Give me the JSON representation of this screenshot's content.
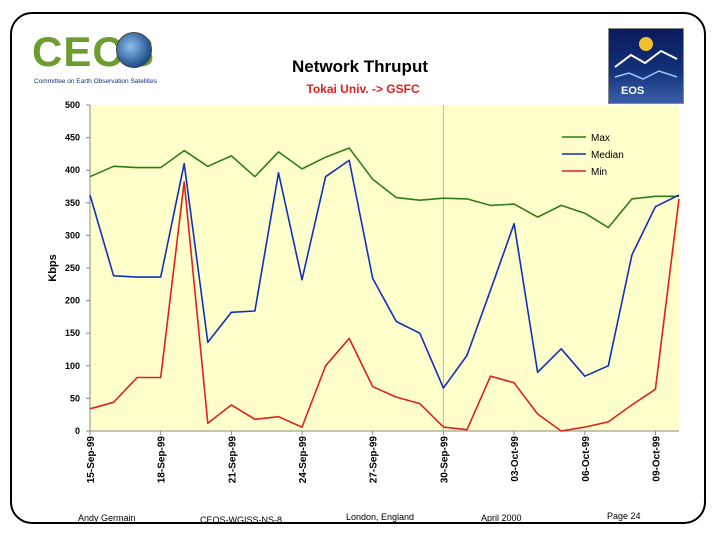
{
  "logos": {
    "left_wordmark": "CEOS",
    "left_tagline": "Committee on Earth Observation Satellites",
    "right_label": "EOS"
  },
  "chart_data": {
    "type": "line",
    "title": "Network Thruput",
    "subtitle": "Tokai Univ. -> GSFC",
    "ylabel": "Kbps",
    "xlabel": "",
    "ylim": [
      0,
      500
    ],
    "yticks": [
      0,
      50,
      100,
      150,
      200,
      250,
      300,
      350,
      400,
      450,
      500
    ],
    "grid": false,
    "legend_position": "top-right",
    "plot_background": "#ffffcc",
    "x_tick_labels": [
      "15-Sep-99",
      "18-Sep-99",
      "21-Sep-99",
      "24-Sep-99",
      "27-Sep-99",
      "30-Sep-99",
      "03-Oct-99",
      "06-Oct-99",
      "09-Oct-99"
    ],
    "x_tick_index": [
      0,
      3,
      6,
      9,
      12,
      15,
      18,
      21,
      24
    ],
    "reference_index": 15,
    "series": [
      {
        "name": "Max",
        "color": "#2e7d1a",
        "values": [
          390,
          406,
          404,
          404,
          430,
          406,
          422,
          390,
          428,
          402,
          420,
          434,
          386,
          358,
          354,
          357,
          356,
          346,
          348,
          328,
          346,
          334,
          312,
          356,
          360,
          360
        ]
      },
      {
        "name": "Median",
        "color": "#1030c0",
        "values": [
          362,
          238,
          236,
          236,
          410,
          136,
          182,
          184,
          396,
          232,
          390,
          415,
          234,
          168,
          150,
          66,
          116,
          216,
          318,
          90,
          126,
          84,
          100,
          270,
          344,
          362
        ]
      },
      {
        "name": "Min",
        "color": "#e02020",
        "values": [
          34,
          44,
          82,
          82,
          382,
          12,
          40,
          18,
          22,
          6,
          100,
          142,
          68,
          52,
          42,
          6,
          2,
          84,
          74,
          26,
          0,
          6,
          14,
          40,
          64,
          356
        ]
      }
    ]
  },
  "footer": {
    "author": "Andy Germain",
    "doc_id": "CEOS-WGISS-NS-8",
    "location": "London, England",
    "date": "April 2000",
    "page": "Page 24"
  }
}
